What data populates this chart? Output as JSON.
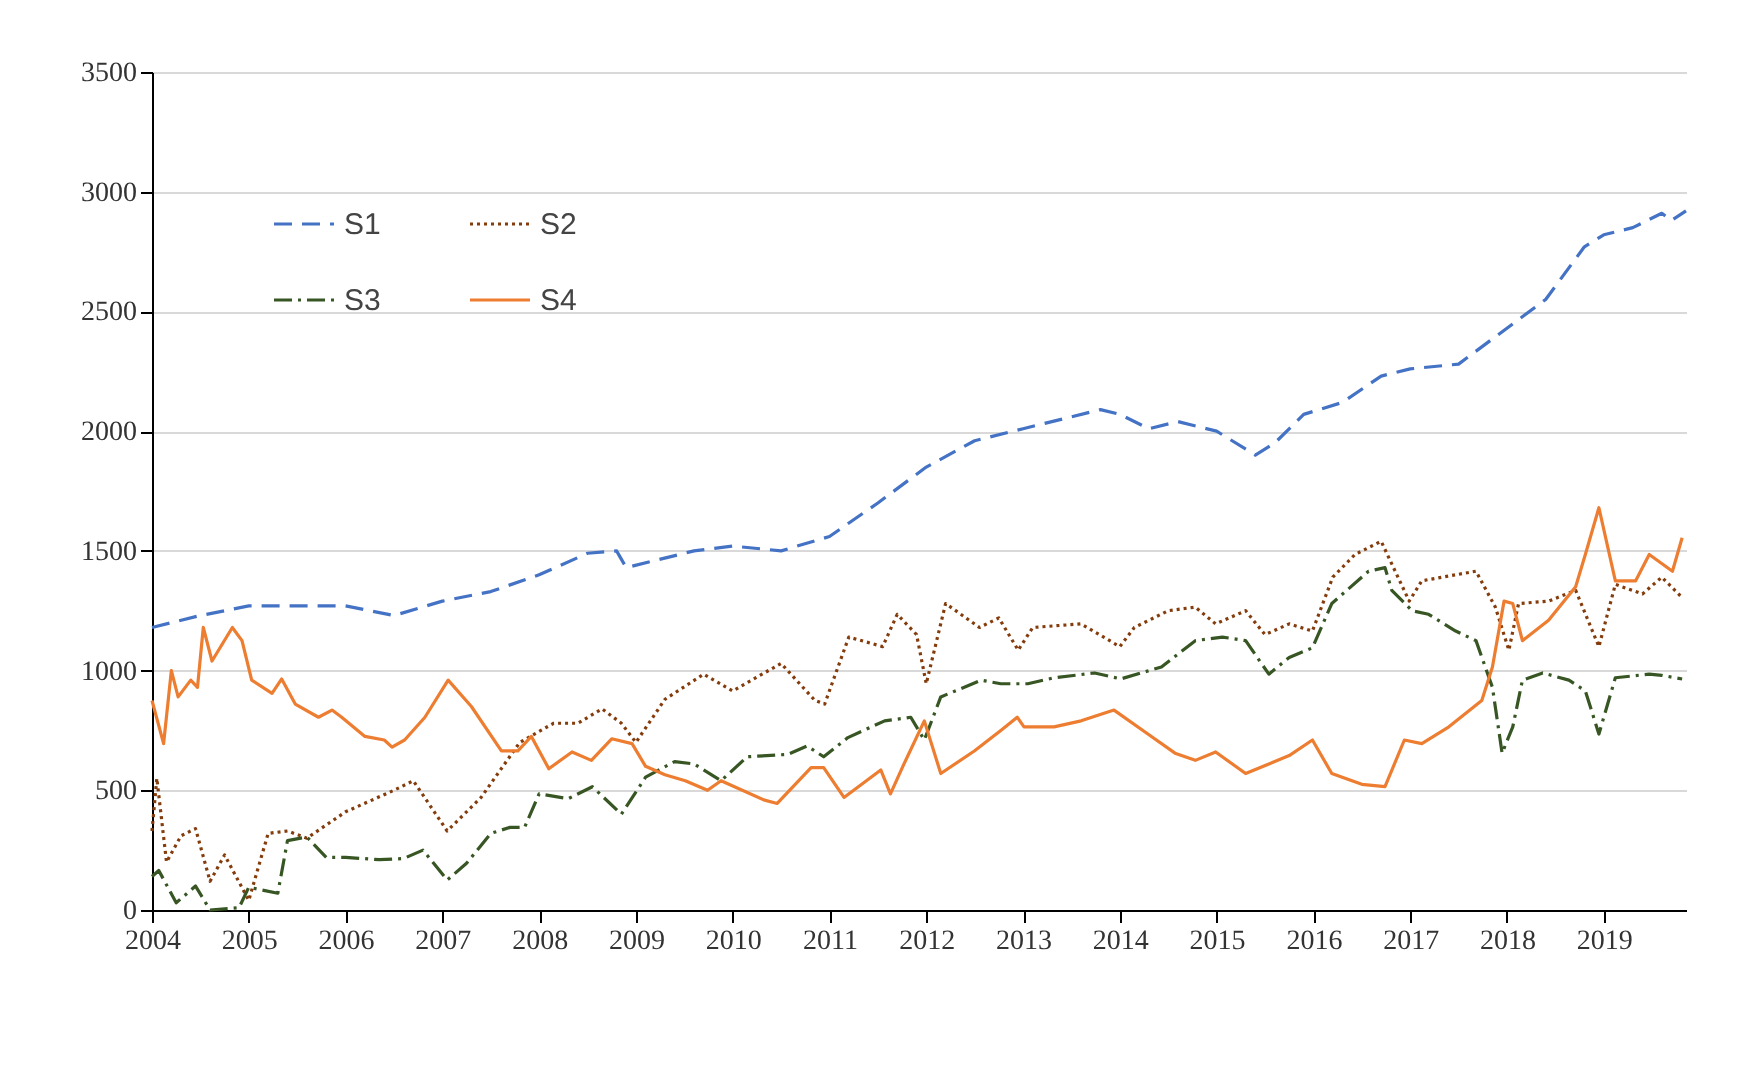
{
  "chart_data": {
    "type": "line",
    "xlim": [
      2004,
      2019.85
    ],
    "xticks": [
      2004,
      2005,
      2006,
      2007,
      2008,
      2009,
      2010,
      2011,
      2012,
      2013,
      2014,
      2015,
      2016,
      2017,
      2018,
      2019
    ],
    "ylim": [
      0,
      3500
    ],
    "yticks": [
      0,
      500,
      1000,
      1500,
      2000,
      2500,
      3000,
      3500
    ],
    "grid": "y",
    "legend": "top left",
    "series": [
      {
        "name": "S1",
        "color": "#4472c4",
        "line_style": "dashed",
        "x": [
          2004,
          2004.5,
          2005,
          2005.5,
          2006,
          2006.5,
          2007,
          2007.5,
          2008,
          2008.5,
          2008.8,
          2008.9,
          2009.6,
          2010,
          2010.5,
          2011,
          2011.5,
          2012,
          2012.5,
          2013,
          2013.5,
          2013.8,
          2014,
          2014.3,
          2014.6,
          2015,
          2015.4,
          2015.6,
          2015.9,
          2016.3,
          2016.7,
          2017,
          2017.5,
          2018,
          2018.4,
          2018.8,
          2019,
          2019.3,
          2019.6,
          2019.7,
          2019.85
        ],
        "values": [
          1180,
          1230,
          1270,
          1270,
          1270,
          1230,
          1290,
          1330,
          1400,
          1490,
          1500,
          1430,
          1500,
          1520,
          1500,
          1560,
          1700,
          1850,
          1960,
          2010,
          2060,
          2090,
          2070,
          2010,
          2040,
          2000,
          1900,
          1950,
          2070,
          2120,
          2230,
          2260,
          2280,
          2430,
          2550,
          2770,
          2820,
          2850,
          2910,
          2880,
          2920
        ]
      },
      {
        "name": "S2",
        "color": "#843c0c",
        "line_style": "dotted",
        "x": [
          2004,
          2004.05,
          2004.15,
          2004.3,
          2004.45,
          2004.6,
          2004.75,
          2005,
          2005.2,
          2005.4,
          2005.6,
          2006,
          2006.5,
          2006.7,
          2006.9,
          2007.05,
          2007.4,
          2007.8,
          2008.15,
          2008.4,
          2008.65,
          2008.85,
          2009,
          2009.3,
          2009.7,
          2010,
          2010.5,
          2010.85,
          2010.95,
          2011.2,
          2011.55,
          2011.7,
          2011.9,
          2012,
          2012.2,
          2012.55,
          2012.75,
          2012.95,
          2013.1,
          2013.6,
          2014,
          2014.15,
          2014.5,
          2014.78,
          2014.99,
          2015.3,
          2015.5,
          2015.75,
          2015.99,
          2016.2,
          2016.43,
          2016.7,
          2016.99,
          2017.12,
          2017.68,
          2017.88,
          2018.02,
          2018.12,
          2018.43,
          2018.71,
          2018.95,
          2019.12,
          2019.4,
          2019.6,
          2019.81
        ],
        "values": [
          330,
          550,
          200,
          310,
          340,
          120,
          230,
          40,
          320,
          330,
          300,
          410,
          500,
          540,
          420,
          330,
          470,
          700,
          780,
          780,
          840,
          780,
          700,
          880,
          985,
          915,
          1030,
          875,
          860,
          1140,
          1100,
          1235,
          1150,
          945,
          1280,
          1180,
          1220,
          1085,
          1180,
          1195,
          1100,
          1180,
          1250,
          1265,
          1195,
          1250,
          1150,
          1195,
          1165,
          1390,
          1485,
          1540,
          1290,
          1375,
          1415,
          1265,
          1085,
          1280,
          1290,
          1335,
          1100,
          1360,
          1320,
          1390,
          1305
        ]
      },
      {
        "name": "S3",
        "color": "#375623",
        "line_style": "dashdot",
        "x": [
          2004,
          2004.07,
          2004.25,
          2004.45,
          2004.6,
          2004.9,
          2005,
          2005.3,
          2005.4,
          2005.6,
          2005.8,
          2006,
          2006.35,
          2006.6,
          2006.8,
          2007.05,
          2007.25,
          2007.5,
          2007.7,
          2007.85,
          2008,
          2008.3,
          2008.55,
          2008.85,
          2009.1,
          2009.4,
          2009.6,
          2009.88,
          2010.15,
          2010.57,
          2010.77,
          2010.94,
          2011.19,
          2011.57,
          2011.84,
          2011.98,
          2012.15,
          2012.57,
          2012.77,
          2013.05,
          2013.32,
          2013.74,
          2014.01,
          2014.43,
          2014.78,
          2015.06,
          2015.3,
          2015.54,
          2015.75,
          2015.99,
          2016.19,
          2016.57,
          2016.74,
          2016.81,
          2017.02,
          2017.19,
          2017.47,
          2017.68,
          2017.85,
          2017.95,
          2018.06,
          2018.16,
          2018.37,
          2018.64,
          2018.81,
          2018.95,
          2019.12,
          2019.47,
          2019.6,
          2019.81
        ],
        "values": [
          140,
          165,
          30,
          100,
          0,
          10,
          95,
          70,
          290,
          305,
          220,
          220,
          210,
          215,
          250,
          125,
          195,
          320,
          345,
          345,
          485,
          465,
          515,
          400,
          555,
          620,
          610,
          540,
          640,
          650,
          685,
          640,
          720,
          790,
          805,
          710,
          890,
          960,
          945,
          945,
          970,
          990,
          965,
          1015,
          1125,
          1140,
          1125,
          985,
          1055,
          1095,
          1280,
          1415,
          1430,
          1335,
          1250,
          1235,
          1165,
          1125,
          930,
          655,
          765,
          960,
          990,
          960,
          915,
          735,
          970,
          985,
          980,
          965
        ]
      },
      {
        "name": "S4",
        "color": "#ed7d31",
        "line_style": "solid",
        "x": [
          2004,
          2004.12,
          2004.2,
          2004.27,
          2004.4,
          2004.47,
          2004.53,
          2004.62,
          2004.83,
          2004.93,
          2005.03,
          2005.24,
          2005.34,
          2005.48,
          2005.72,
          2005.86,
          2005.96,
          2006.2,
          2006.4,
          2006.48,
          2006.61,
          2006.82,
          2007.06,
          2007.3,
          2007.61,
          2007.78,
          2007.92,
          2008.1,
          2008.34,
          2008.54,
          2008.75,
          2008.96,
          2009.1,
          2009.3,
          2009.51,
          2009.74,
          2009.88,
          2010.32,
          2010.46,
          2010.81,
          2010.94,
          2011.15,
          2011.53,
          2011.63,
          2011.77,
          2011.98,
          2012.15,
          2012.5,
          2012.77,
          2012.94,
          2013.01,
          2013.32,
          2013.6,
          2013.94,
          2014.29,
          2014.57,
          2014.78,
          2014.99,
          2015.3,
          2015.75,
          2015.99,
          2016.19,
          2016.5,
          2016.74,
          2016.94,
          2017.12,
          2017.4,
          2017.74,
          2017.85,
          2017.97,
          2018.06,
          2018.16,
          2018.43,
          2018.71,
          2018.81,
          2018.95,
          2019.12,
          2019.33,
          2019.47,
          2019.71,
          2019.81
        ],
        "values": [
          875,
          695,
          1000,
          890,
          960,
          930,
          1180,
          1040,
          1180,
          1125,
          960,
          905,
          965,
          860,
          805,
          835,
          805,
          725,
          710,
          680,
          710,
          805,
          960,
          850,
          665,
          665,
          725,
          590,
          660,
          625,
          715,
          695,
          600,
          565,
          540,
          500,
          540,
          460,
          445,
          595,
          595,
          470,
          585,
          485,
          610,
          790,
          570,
          665,
          750,
          805,
          765,
          765,
          790,
          835,
          735,
          655,
          625,
          660,
          570,
          645,
          710,
          570,
          525,
          515,
          710,
          695,
          765,
          875,
          1015,
          1290,
          1280,
          1125,
          1210,
          1350,
          1485,
          1680,
          1375,
          1375,
          1485,
          1415,
          1555
        ]
      }
    ]
  }
}
